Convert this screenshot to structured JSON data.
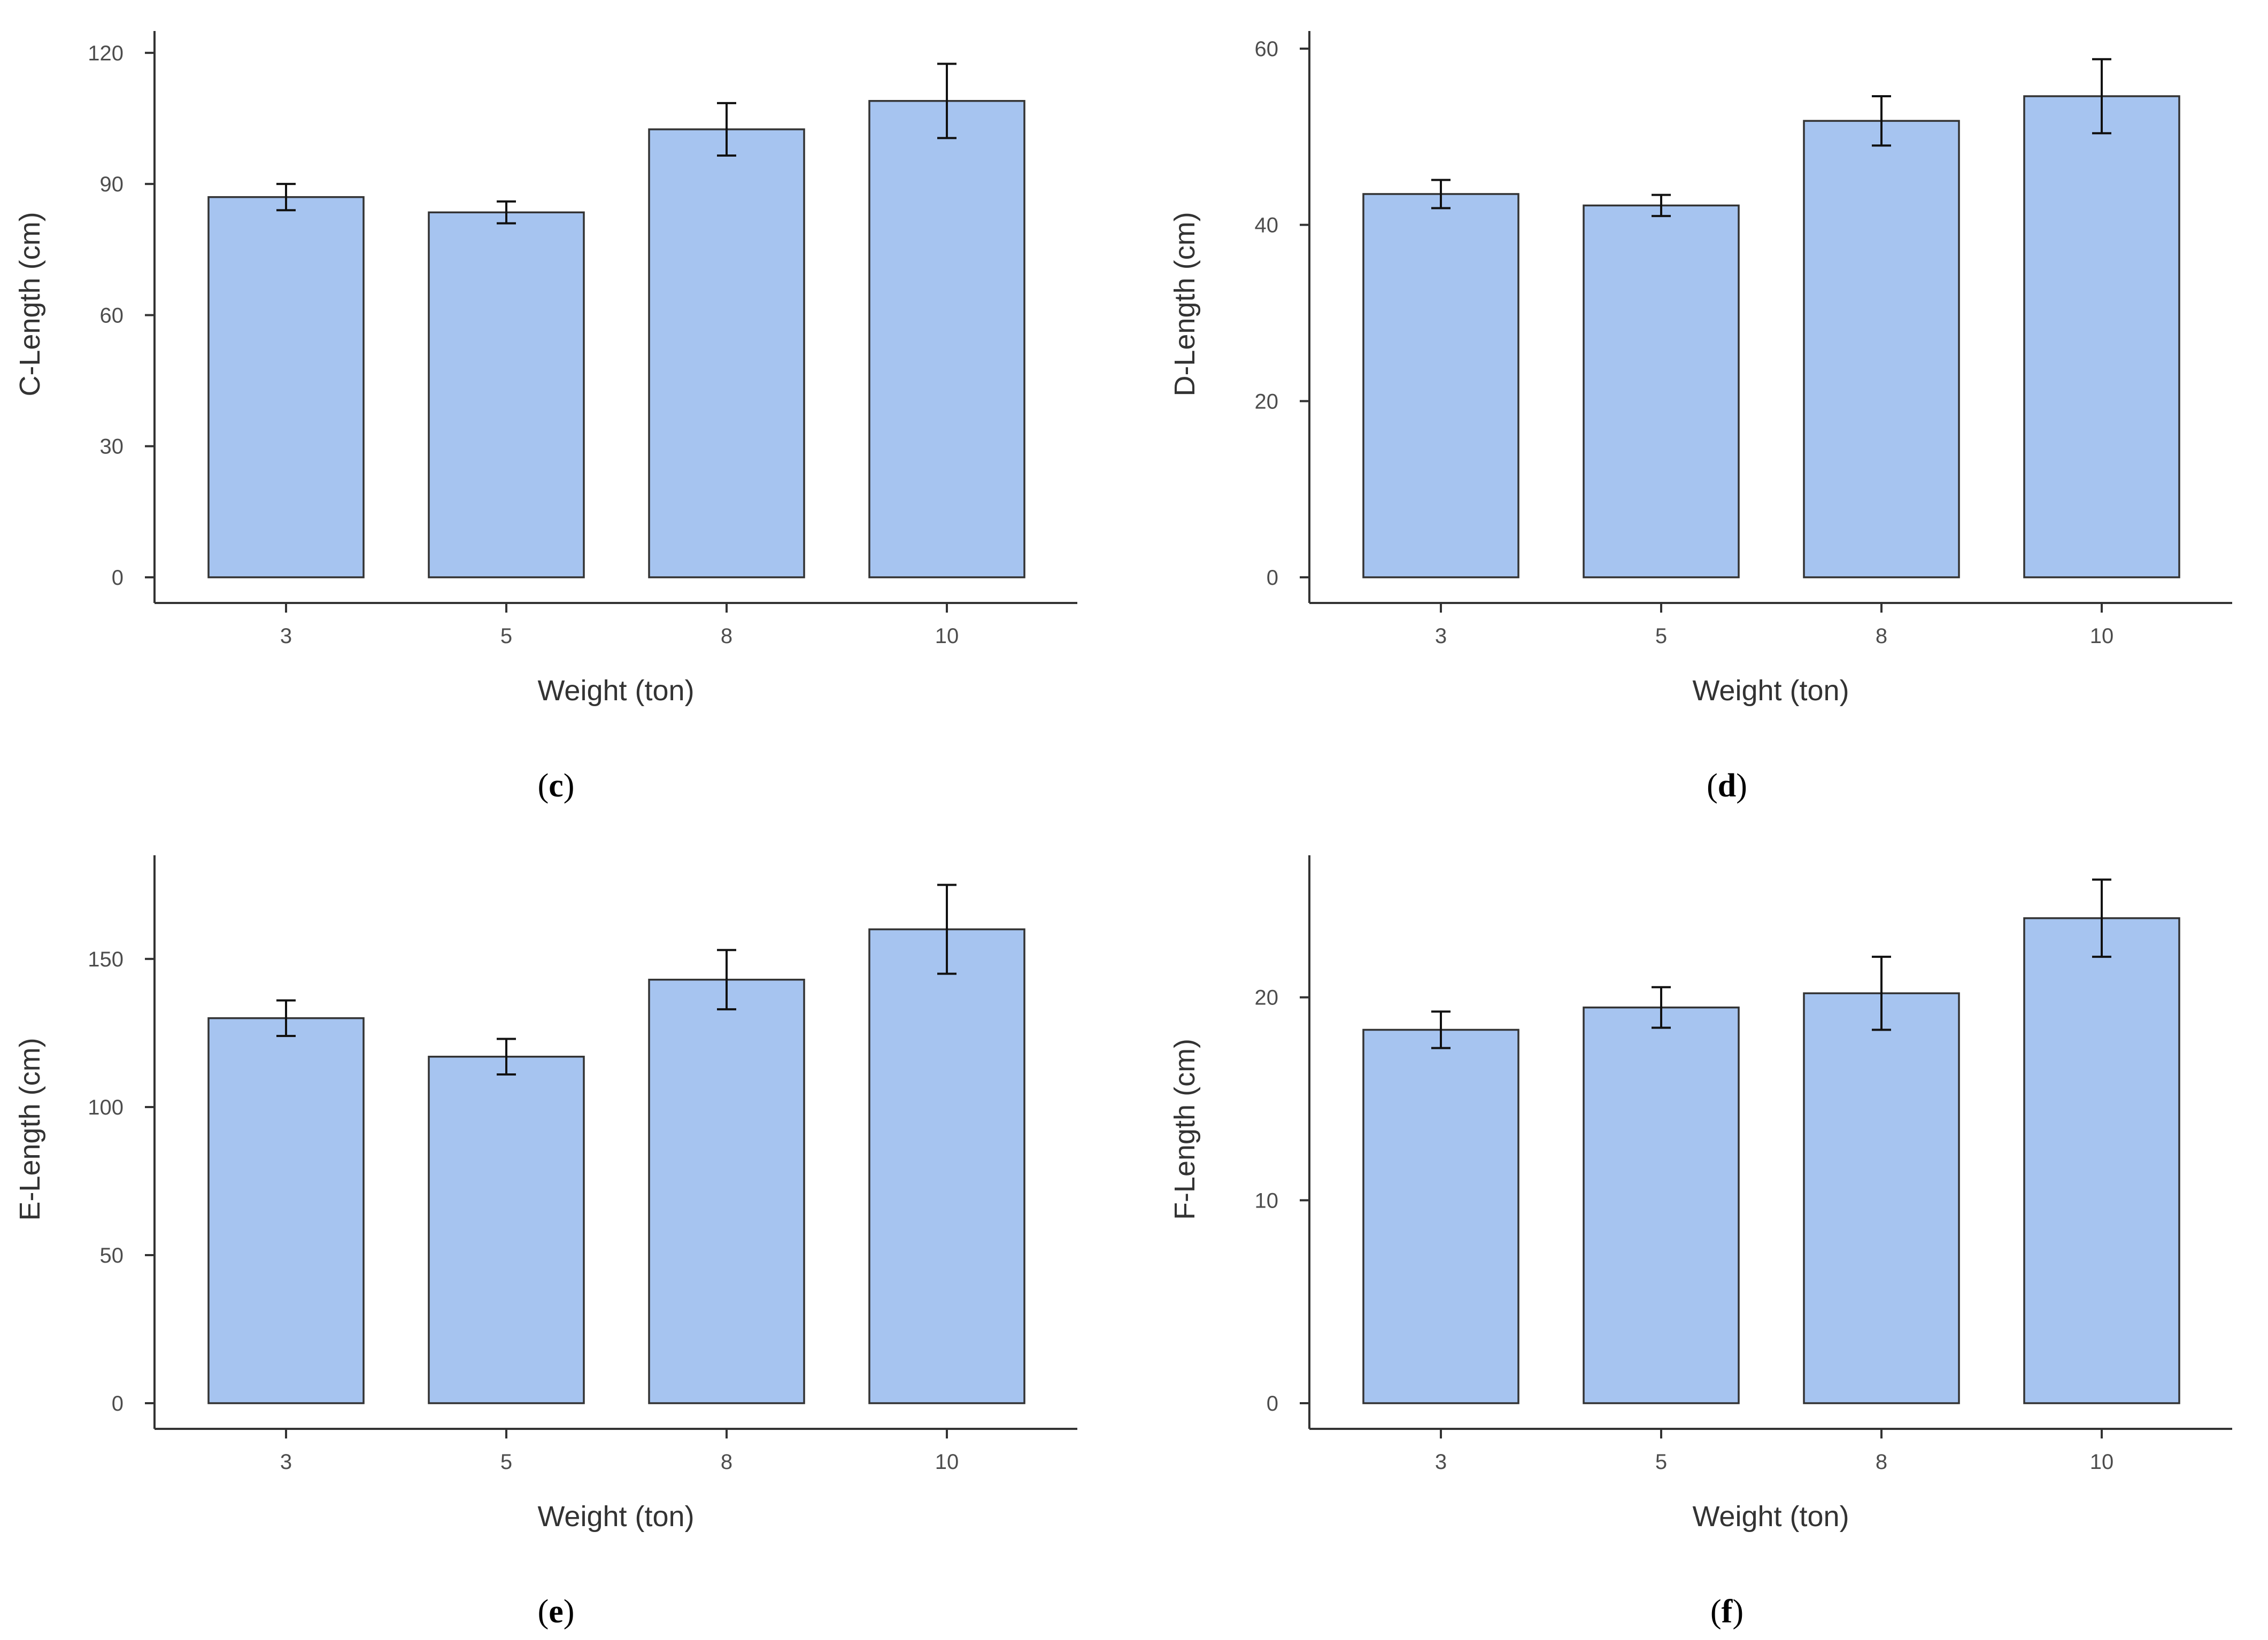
{
  "figure": {
    "bar_color": "#a6c4f0",
    "bar_edge_color": "#333333",
    "axis_color": "#333333"
  },
  "chart_data": [
    {
      "type": "bar",
      "panel_label": "c",
      "xlabel": "Weight (ton)",
      "ylabel": "C-Length (cm)",
      "categories": [
        "3",
        "5",
        "8",
        "10"
      ],
      "values": [
        87,
        83.5,
        102.5,
        109
      ],
      "error": [
        3,
        2.5,
        6,
        8.5
      ],
      "ylim": [
        0,
        125
      ],
      "yticks": [
        0,
        30,
        60,
        90,
        120
      ]
    },
    {
      "type": "bar",
      "panel_label": "d",
      "xlabel": "Weight (ton)",
      "ylabel": "D-Length (cm)",
      "categories": [
        "3",
        "5",
        "8",
        "10"
      ],
      "values": [
        43.5,
        42.2,
        51.8,
        54.6
      ],
      "error": [
        1.6,
        1.2,
        2.8,
        4.2
      ],
      "ylim": [
        0,
        62
      ],
      "yticks": [
        0,
        20,
        40,
        60
      ]
    },
    {
      "type": "bar",
      "panel_label": "e",
      "xlabel": "Weight (ton)",
      "ylabel": "E-Length (cm)",
      "categories": [
        "3",
        "5",
        "8",
        "10"
      ],
      "values": [
        130,
        117,
        143,
        160
      ],
      "error": [
        6,
        6,
        10,
        15
      ],
      "ylim": [
        0,
        185
      ],
      "yticks": [
        0,
        50,
        100,
        150
      ]
    },
    {
      "type": "bar",
      "panel_label": "f",
      "xlabel": "Weight (ton)",
      "ylabel": "F-Length (cm)",
      "categories": [
        "3",
        "5",
        "8",
        "10"
      ],
      "values": [
        18.4,
        19.5,
        20.2,
        23.9
      ],
      "error": [
        0.9,
        1.0,
        1.8,
        1.9
      ],
      "ylim": [
        0,
        27
      ],
      "yticks": [
        0,
        10,
        20
      ]
    }
  ]
}
